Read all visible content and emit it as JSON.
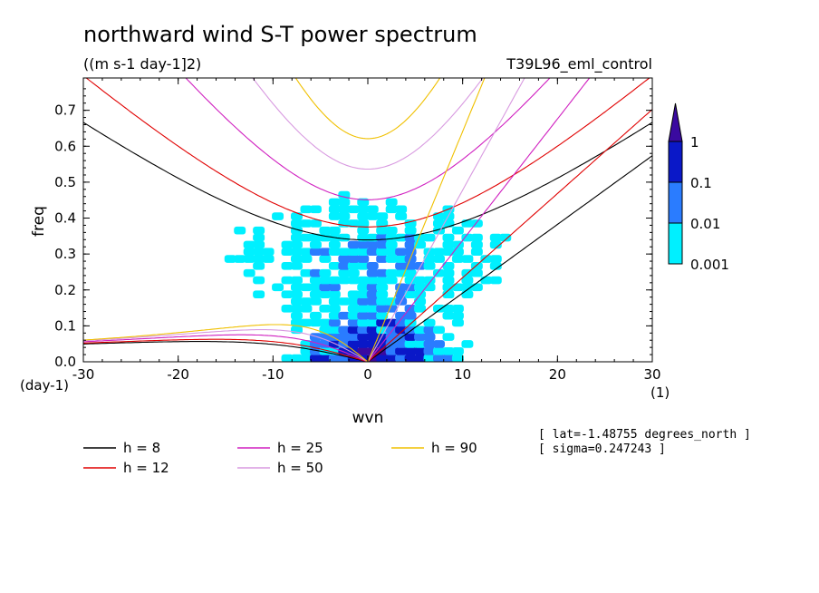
{
  "chart_data": {
    "type": "heatmap",
    "title": "northward wind S-T power spectrum",
    "units": "((m s-1 day-1]2)",
    "case_name": "T39L96_eml_control",
    "xlabel": "wvn",
    "ylabel": "freq",
    "x_unit": "(1)",
    "y_unit": "(day-1)",
    "xlim": [
      -30,
      30
    ],
    "ylim": [
      0,
      0.79
    ],
    "x_ticks": [
      -30,
      -20,
      -10,
      0,
      10,
      20,
      30
    ],
    "y_ticks": [
      0.0,
      0.1,
      0.2,
      0.3,
      0.4,
      0.5,
      0.6,
      0.7
    ],
    "x_tick_labels": [
      "-30",
      "-20",
      "-10",
      "0",
      "10",
      "20",
      "30"
    ],
    "y_tick_labels": [
      "0.0",
      "0.1",
      "0.2",
      "0.3",
      "0.4",
      "0.5",
      "0.6",
      "0.7"
    ],
    "colorbar": {
      "levels": [
        0.001,
        0.01,
        0.1,
        1
      ],
      "labels": [
        "0.001",
        "0.01",
        "0.1",
        "1"
      ],
      "colors": [
        "#00f0ff",
        "#2a7cff",
        "#0a18c8",
        "#3a0aa0"
      ]
    },
    "dispersion_curves": [
      {
        "label": "h =  8",
        "h": 8,
        "color": "#000000"
      },
      {
        "label": "h = 12",
        "h": 12,
        "color": "#e00000"
      },
      {
        "label": "h = 25",
        "h": 25,
        "color": "#d020c0"
      },
      {
        "label": "h = 50",
        "h": 50,
        "color": "#d89ae0"
      },
      {
        "label": "h = 90",
        "h": 90,
        "color": "#f0c000"
      }
    ],
    "annotations": [
      "[ lat=-1.48755 degrees_north ]",
      "[ sigma=0.247243 ]"
    ]
  }
}
